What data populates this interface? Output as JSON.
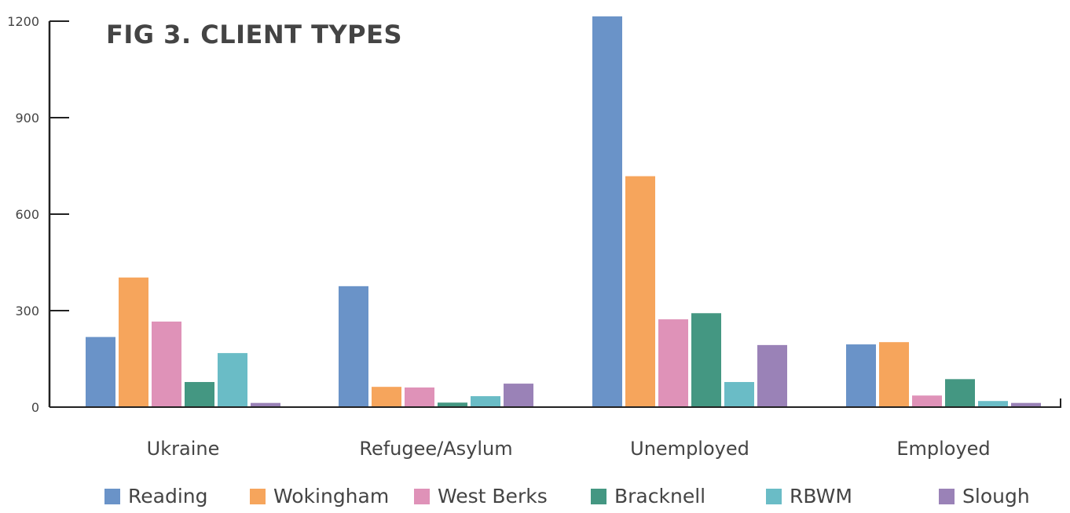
{
  "chart_data": {
    "type": "bar",
    "title": "FIG 3. CLIENT TYPES",
    "categories": [
      "Ukraine",
      "Refugee/Asylum",
      "Unemployed",
      "Employed"
    ],
    "yticks": [
      "0",
      "300",
      "600",
      "900",
      "1200"
    ],
    "ylim": [
      0,
      1200
    ],
    "grid": false,
    "legend_position": "bottom",
    "series": [
      {
        "name": "Reading",
        "color": "#6a93c8",
        "values": [
          218,
          376,
          1215,
          195
        ]
      },
      {
        "name": "Wokingham",
        "color": "#f6a55c",
        "values": [
          403,
          63,
          718,
          202
        ]
      },
      {
        "name": "West Berks",
        "color": "#df92b8",
        "values": [
          266,
          61,
          273,
          36
        ]
      },
      {
        "name": "Bracknell",
        "color": "#449782",
        "values": [
          78,
          14,
          292,
          87
        ]
      },
      {
        "name": "RBWM",
        "color": "#6abcc6",
        "values": [
          168,
          34,
          78,
          19
        ]
      },
      {
        "name": "Slough",
        "color": "#9a82b7",
        "values": [
          13,
          73,
          193,
          13
        ]
      }
    ]
  }
}
